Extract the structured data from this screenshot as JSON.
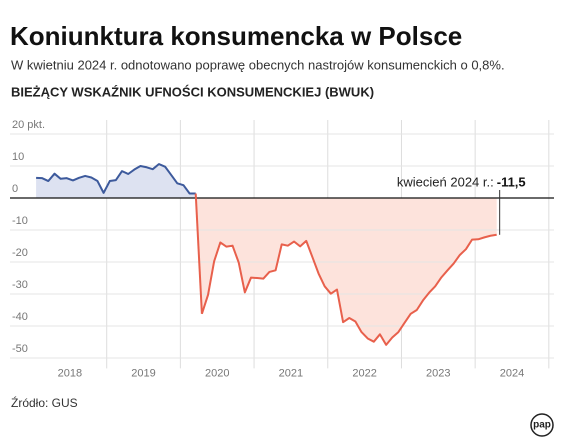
{
  "title": "Koniunktura konsumencka w Polsce",
  "subtitle": "W kwietniu 2024 r. odnotowano poprawę obecnych nastrojów konsumenckich o 0,8%.",
  "source": "Źródło: GUS",
  "logo": "pap",
  "chart_data": {
    "type": "line",
    "title": "BIEŻĄCY WSKAŹNIK UFNOŚCI KONSUMENCKIEJ (BWUK)",
    "annotation": "kwiecień 2024 r.:",
    "x": [
      2018.042,
      2018.125,
      2018.208,
      2018.292,
      2018.375,
      2018.458,
      2018.542,
      2018.625,
      2018.708,
      2018.792,
      2018.875,
      2018.958,
      2019.042,
      2019.125,
      2019.208,
      2019.292,
      2019.375,
      2019.458,
      2019.542,
      2019.625,
      2019.708,
      2019.792,
      2019.875,
      2019.958,
      2020.042,
      2020.125,
      2020.208,
      2020.292,
      2020.375,
      2020.458,
      2020.542,
      2020.625,
      2020.708,
      2020.792,
      2020.875,
      2020.958,
      2021.042,
      2021.125,
      2021.208,
      2021.292,
      2021.375,
      2021.458,
      2021.542,
      2021.625,
      2021.708,
      2021.792,
      2021.875,
      2021.958,
      2022.042,
      2022.125,
      2022.208,
      2022.292,
      2022.375,
      2022.458,
      2022.542,
      2022.625,
      2022.708,
      2022.792,
      2022.875,
      2022.958,
      2023.042,
      2023.125,
      2023.208,
      2023.292,
      2023.375,
      2023.458,
      2023.542,
      2023.625,
      2023.708,
      2023.792,
      2023.875,
      2023.958,
      2024.042,
      2024.125,
      2024.208,
      2024.292
    ],
    "values": [
      6.3,
      6.2,
      5.3,
      7.6,
      6.0,
      6.2,
      5.5,
      6.3,
      6.9,
      6.4,
      5.3,
      1.6,
      5.3,
      5.6,
      8.4,
      7.5,
      8.9,
      10.0,
      9.6,
      9.0,
      10.6,
      9.8,
      7.2,
      4.6,
      4.0,
      1.4,
      1.4,
      -36.2,
      -30.3,
      -19.8,
      -13.9,
      -15.2,
      -14.9,
      -20.2,
      -29.5,
      -24.9,
      -25.0,
      -25.2,
      -23.1,
      -22.6,
      -14.5,
      -14.9,
      -13.6,
      -15.1,
      -13.4,
      -18.5,
      -23.6,
      -27.6,
      -29.9,
      -28.6,
      -38.8,
      -37.5,
      -38.6,
      -41.9,
      -43.9,
      -44.9,
      -42.6,
      -45.9,
      -43.6,
      -41.9,
      -39.0,
      -36.2,
      -35.0,
      -32.0,
      -29.6,
      -27.6,
      -24.8,
      -22.6,
      -20.5,
      -17.8,
      -16.0,
      -13.0,
      -12.9,
      -12.3,
      -11.8,
      -11.5
    ],
    "value_labels": [
      null,
      null,
      null,
      null,
      null,
      null,
      null,
      null,
      null,
      null,
      null,
      null,
      null,
      null,
      null,
      null,
      null,
      null,
      null,
      null,
      null,
      null,
      null,
      null,
      null,
      null,
      null,
      null,
      null,
      null,
      null,
      null,
      null,
      null,
      null,
      null,
      null,
      null,
      null,
      null,
      null,
      null,
      null,
      null,
      null,
      null,
      null,
      null,
      null,
      null,
      null,
      null,
      null,
      null,
      null,
      null,
      null,
      null,
      null,
      null,
      null,
      null,
      null,
      null,
      null,
      null,
      null,
      null,
      null,
      null,
      null,
      null,
      null,
      null,
      null,
      "-11,5"
    ],
    "color_positive": "#3d5a9c",
    "fill_positive": "#dde2f1",
    "color_negative": "#e8604c",
    "fill_negative": "#fde3dc",
    "xlim": [
      2018,
      2025.07
    ],
    "ylim": [
      -52,
      20
    ],
    "xticks": [
      {
        "value": 2018.5,
        "label": "2018"
      },
      {
        "value": 2019.5,
        "label": "2019"
      },
      {
        "value": 2020.5,
        "label": "2020"
      },
      {
        "value": 2021.5,
        "label": "2021"
      },
      {
        "value": 2022.5,
        "label": "2022"
      },
      {
        "value": 2023.5,
        "label": "2023"
      },
      {
        "value": 2024.5,
        "label": "2024"
      }
    ],
    "yticks": [
      {
        "value": 20,
        "label": "20 pkt."
      },
      10,
      0,
      -10,
      -20,
      -30,
      -40,
      -50
    ],
    "grid": true
  }
}
